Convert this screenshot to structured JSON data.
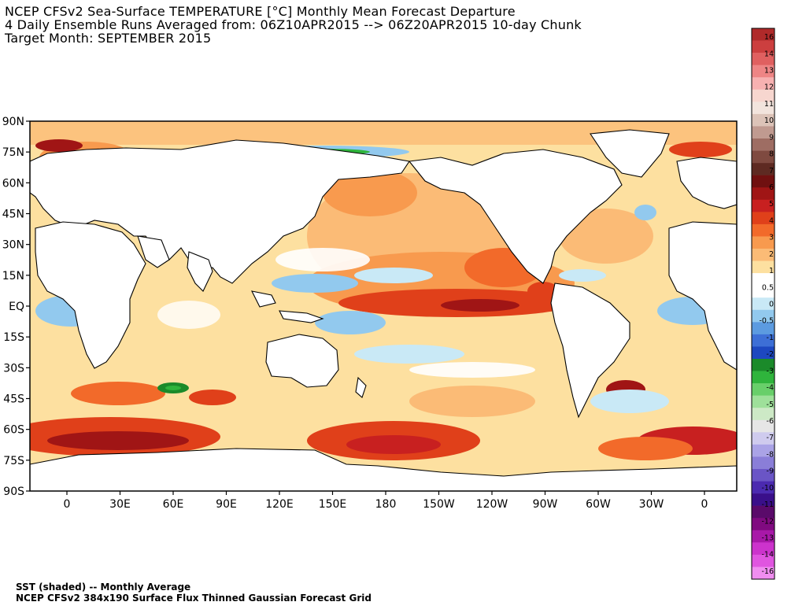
{
  "title": {
    "line1": "NCEP CFSv2 Sea-Surface TEMPERATURE [°C] Monthly Mean Forecast Departure",
    "line2": "4 Daily Ensemble Runs Averaged from: 06Z10APR2015 --> 06Z20APR2015 10-day Chunk",
    "line3": "Target Month: SEPTEMBER 2015"
  },
  "footer": {
    "line1": "SST (shaded) -- Monthly Average",
    "line2": "NCEP CFSv2 384x190 Surface Flux Thinned Gaussian Forecast Grid"
  },
  "map": {
    "lat_labels": [
      "90N",
      "75N",
      "60N",
      "45N",
      "30N",
      "15N",
      "EQ",
      "15S",
      "30S",
      "45S",
      "60S",
      "75S",
      "90S"
    ],
    "lon_labels": [
      "0",
      "30E",
      "60E",
      "90E",
      "120E",
      "150E",
      "180",
      "150W",
      "120W",
      "90W",
      "60W",
      "30W",
      "0"
    ]
  },
  "colorbar": {
    "labels": [
      "16",
      "14",
      "13",
      "12",
      "11",
      "10",
      "9",
      "8",
      "7",
      "6",
      "5",
      "4",
      "3",
      "2",
      "1",
      "0.5",
      "0",
      "-0.5",
      "-1",
      "-2",
      "-3",
      "-4",
      "-5",
      "-6",
      "-7",
      "-8",
      "-9",
      "-10",
      "-11",
      "-12",
      "-13",
      "-14",
      "-16"
    ],
    "colors": [
      "#b02a2a",
      "#cc3f3f",
      "#e06060",
      "#ee8585",
      "#f7b1b1",
      "#f7d6cf",
      "#f2e4dd",
      "#dcc3b8",
      "#c09a90",
      "#9e6d63",
      "#7f4a40",
      "#5e2a22",
      "#701010",
      "#a01515",
      "#c82020",
      "#e0401a",
      "#f26a2a",
      "#f89a4e",
      "#fbbb76",
      "#fde0a0",
      "#ffffff",
      "#ffffff",
      "#c9e9f6",
      "#92c9ee",
      "#5c9be0",
      "#3d6fd6",
      "#1d48c0",
      "#1b8a2a",
      "#2fb43c",
      "#68cf6a",
      "#9ee09a",
      "#cde9c6",
      "#e6e6e6",
      "#cfcbee",
      "#aaa3e6",
      "#8a7ed8",
      "#6a55c6",
      "#4b2ab0",
      "#3a0f8a",
      "#5a0a6a",
      "#800a80",
      "#a818a8",
      "#cc33cc",
      "#e055e0",
      "#f08df0"
    ]
  }
}
